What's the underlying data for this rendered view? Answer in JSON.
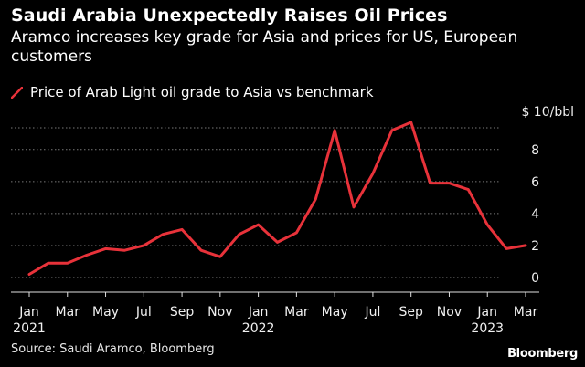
{
  "header": {
    "title": "Saudi Arabia Unexpectedly Raises Oil Prices",
    "subtitle": "Aramco increases key grade for Asia and prices for US, European customers"
  },
  "legend": {
    "label": "Price of Arab Light oil grade to Asia vs benchmark"
  },
  "footer": {
    "source": "Source: Saudi Aramco, Bloomberg",
    "brand": "Bloomberg"
  },
  "colors": {
    "background": "#000000",
    "series": "#e8323a",
    "grid": "#777777"
  },
  "chart_data": {
    "type": "line",
    "y_unit_label": "$ 10/bbl",
    "ylim": [
      -0.8,
      10.5
    ],
    "y_ticks": [
      0,
      2,
      4,
      6,
      8
    ],
    "grid": true,
    "grid_style": "dotted",
    "x_tick_labels": [
      {
        "month": "Jan",
        "year": "2021",
        "index": 0
      },
      {
        "month": "Mar",
        "year": "",
        "index": 2
      },
      {
        "month": "May",
        "year": "",
        "index": 4
      },
      {
        "month": "Jul",
        "year": "",
        "index": 6
      },
      {
        "month": "Sep",
        "year": "",
        "index": 8
      },
      {
        "month": "Nov",
        "year": "",
        "index": 10
      },
      {
        "month": "Jan",
        "year": "2022",
        "index": 12
      },
      {
        "month": "Mar",
        "year": "",
        "index": 14
      },
      {
        "month": "May",
        "year": "",
        "index": 16
      },
      {
        "month": "Jul",
        "year": "",
        "index": 18
      },
      {
        "month": "Sep",
        "year": "",
        "index": 20
      },
      {
        "month": "Nov",
        "year": "",
        "index": 22
      },
      {
        "month": "Jan",
        "year": "2023",
        "index": 24
      },
      {
        "month": "Mar",
        "year": "",
        "index": 26
      }
    ],
    "x": [
      "2021-01",
      "2021-02",
      "2021-03",
      "2021-04",
      "2021-05",
      "2021-06",
      "2021-07",
      "2021-08",
      "2021-09",
      "2021-10",
      "2021-11",
      "2021-12",
      "2022-01",
      "2022-02",
      "2022-03",
      "2022-04",
      "2022-05",
      "2022-06",
      "2022-07",
      "2022-08",
      "2022-09",
      "2022-10",
      "2022-11",
      "2022-12",
      "2023-01",
      "2023-02",
      "2023-03"
    ],
    "series": [
      {
        "values": [
          0.2,
          0.9,
          0.9,
          1.4,
          1.8,
          1.7,
          2.0,
          2.7,
          3.0,
          1.7,
          1.3,
          2.7,
          3.3,
          2.2,
          2.8,
          4.9,
          9.2,
          4.4,
          6.5,
          9.2,
          9.7,
          5.9,
          5.9,
          5.5,
          3.3,
          1.8,
          2.0
        ]
      }
    ]
  }
}
